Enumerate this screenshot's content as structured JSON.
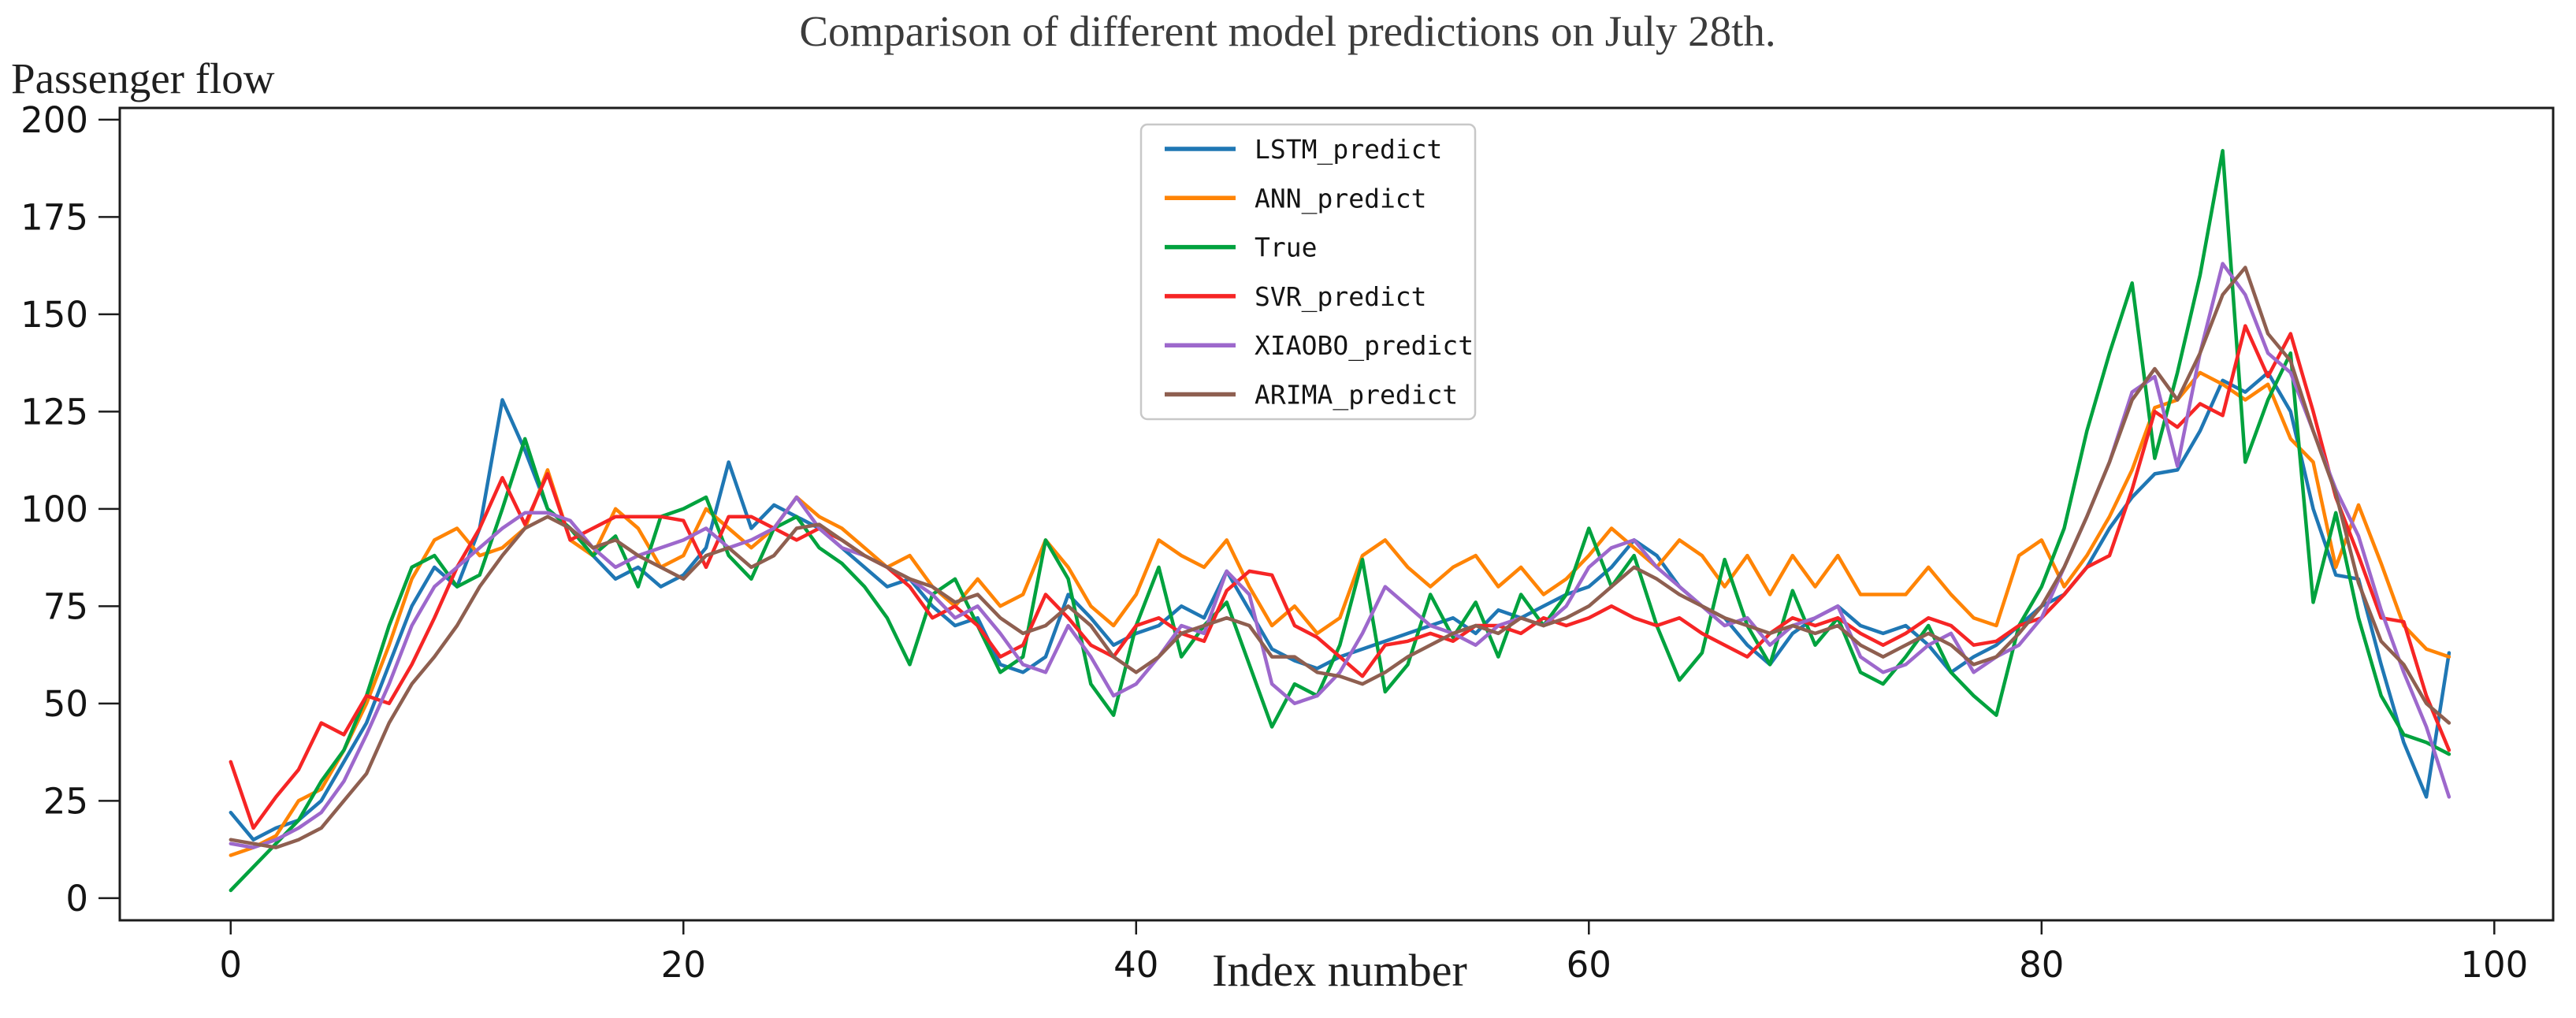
{
  "figure": {
    "title": "Comparison of different model predictions on July 28th.",
    "y_axis_title": "Passenger flow",
    "x_axis_title": "Index number"
  },
  "chart_data": {
    "type": "line",
    "title": "Comparison of different model predictions on July 28th.",
    "xlabel": "Index number",
    "ylabel": "Passenger flow",
    "x_start": 0,
    "x_step": 1,
    "x_ticks": [
      0,
      20,
      40,
      60,
      80,
      100
    ],
    "y_ticks": [
      0,
      25,
      50,
      75,
      100,
      125,
      150,
      175,
      200
    ],
    "xlim": [
      -4.9,
      102.6
    ],
    "ylim": [
      -5.7,
      203
    ],
    "grid": false,
    "legend_position": "upper center-left",
    "frame_color": "#1c1c1c",
    "legend_border_color": "#c8c8c8",
    "series": [
      {
        "name": "LSTM_predict",
        "color": "#1f77b4",
        "values": [
          22,
          15,
          18,
          20,
          25,
          35,
          45,
          60,
          75,
          85,
          80,
          95,
          128,
          115,
          100,
          95,
          88,
          82,
          85,
          80,
          83,
          90,
          112,
          95,
          101,
          98,
          95,
          90,
          85,
          80,
          82,
          75,
          70,
          72,
          60,
          58,
          62,
          78,
          72,
          65,
          68,
          70,
          75,
          72,
          84,
          74,
          64,
          61,
          59,
          62,
          64,
          66,
          68,
          70,
          72,
          68,
          74,
          72,
          75,
          78,
          80,
          85,
          92,
          88,
          80,
          75,
          72,
          65,
          60,
          68,
          72,
          75,
          70,
          68,
          70,
          65,
          58,
          62,
          65,
          70,
          75,
          78,
          85,
          95,
          103,
          109,
          110,
          120,
          133,
          130,
          135,
          125,
          100,
          83,
          82,
          60,
          40,
          26,
          63
        ]
      },
      {
        "name": "ANN_predict",
        "color": "#ff8405",
        "values": [
          11,
          13,
          16,
          25,
          28,
          38,
          50,
          65,
          82,
          92,
          95,
          88,
          90,
          95,
          110,
          92,
          88,
          100,
          95,
          85,
          88,
          100,
          95,
          90,
          95,
          103,
          98,
          95,
          90,
          85,
          88,
          80,
          75,
          82,
          75,
          78,
          92,
          85,
          75,
          70,
          78,
          92,
          88,
          85,
          92,
          80,
          70,
          75,
          68,
          72,
          88,
          92,
          85,
          80,
          85,
          88,
          80,
          85,
          78,
          82,
          88,
          95,
          90,
          85,
          92,
          88,
          80,
          88,
          78,
          88,
          80,
          88,
          78,
          78,
          78,
          85,
          78,
          72,
          70,
          88,
          92,
          80,
          88,
          98,
          110,
          126,
          128,
          135,
          132,
          128,
          132,
          118,
          112,
          85,
          101,
          86,
          70,
          64,
          62
        ]
      },
      {
        "name": "True",
        "color": "#00a23e",
        "values": [
          2,
          8,
          14,
          20,
          30,
          38,
          52,
          70,
          85,
          88,
          80,
          83,
          100,
          118,
          100,
          95,
          88,
          93,
          80,
          98,
          100,
          103,
          88,
          82,
          95,
          98,
          90,
          86,
          80,
          72,
          60,
          78,
          82,
          70,
          58,
          62,
          92,
          82,
          55,
          47,
          70,
          85,
          62,
          70,
          76,
          60,
          44,
          55,
          52,
          65,
          87,
          53,
          60,
          78,
          67,
          76,
          62,
          78,
          70,
          78,
          95,
          80,
          88,
          70,
          56,
          63,
          87,
          70,
          60,
          79,
          65,
          72,
          58,
          55,
          62,
          70,
          58,
          52,
          47,
          70,
          80,
          95,
          120,
          140,
          158,
          113,
          135,
          160,
          192,
          112,
          128,
          140,
          76,
          99,
          72,
          52,
          42,
          40,
          37
        ]
      },
      {
        "name": "SVR_predict",
        "color": "#f62525",
        "values": [
          35,
          18,
          26,
          33,
          45,
          42,
          52,
          50,
          60,
          72,
          85,
          95,
          108,
          96,
          109,
          92,
          95,
          98,
          98,
          98,
          97,
          85,
          98,
          98,
          95,
          92,
          95,
          92,
          88,
          85,
          80,
          72,
          75,
          70,
          62,
          65,
          78,
          72,
          65,
          62,
          70,
          72,
          68,
          66,
          79,
          84,
          83,
          70,
          67,
          62,
          57,
          65,
          66,
          68,
          66,
          70,
          70,
          68,
          72,
          70,
          72,
          75,
          72,
          70,
          72,
          68,
          65,
          62,
          68,
          72,
          70,
          72,
          68,
          65,
          68,
          72,
          70,
          65,
          66,
          70,
          72,
          78,
          85,
          88,
          105,
          125,
          121,
          127,
          124,
          147,
          134,
          145,
          125,
          103,
          88,
          72,
          71,
          52,
          38
        ]
      },
      {
        "name": "XIAOBO_predict",
        "color": "#9d68cc",
        "values": [
          14,
          13,
          15,
          18,
          22,
          30,
          42,
          55,
          70,
          80,
          85,
          90,
          95,
          99,
          99,
          97,
          90,
          85,
          88,
          90,
          92,
          95,
          90,
          92,
          95,
          103,
          95,
          90,
          88,
          85,
          82,
          78,
          72,
          75,
          68,
          60,
          58,
          70,
          62,
          52,
          55,
          62,
          70,
          68,
          84,
          78,
          55,
          50,
          52,
          58,
          68,
          80,
          75,
          70,
          68,
          65,
          70,
          72,
          70,
          75,
          85,
          90,
          92,
          85,
          80,
          75,
          70,
          72,
          65,
          70,
          72,
          75,
          62,
          58,
          60,
          65,
          68,
          58,
          62,
          65,
          72,
          85,
          98,
          112,
          130,
          134,
          111,
          140,
          163,
          155,
          140,
          135,
          120,
          105,
          93,
          74,
          58,
          44,
          26
        ]
      },
      {
        "name": "ARIMA_predict",
        "color": "#8e5f50",
        "values": [
          15,
          14,
          13,
          15,
          18,
          25,
          32,
          45,
          55,
          62,
          70,
          80,
          88,
          95,
          98,
          95,
          90,
          92,
          88,
          85,
          82,
          88,
          90,
          85,
          88,
          95,
          96,
          92,
          88,
          85,
          82,
          80,
          76,
          78,
          72,
          68,
          70,
          75,
          70,
          62,
          58,
          62,
          68,
          70,
          72,
          70,
          62,
          62,
          58,
          57,
          55,
          58,
          62,
          65,
          68,
          70,
          68,
          72,
          70,
          72,
          75,
          80,
          85,
          82,
          78,
          75,
          72,
          70,
          68,
          70,
          68,
          70,
          65,
          62,
          65,
          68,
          65,
          60,
          62,
          68,
          75,
          85,
          98,
          112,
          128,
          136,
          128,
          140,
          155,
          162,
          145,
          138,
          120,
          104,
          81,
          66,
          60,
          50,
          45
        ]
      }
    ]
  }
}
